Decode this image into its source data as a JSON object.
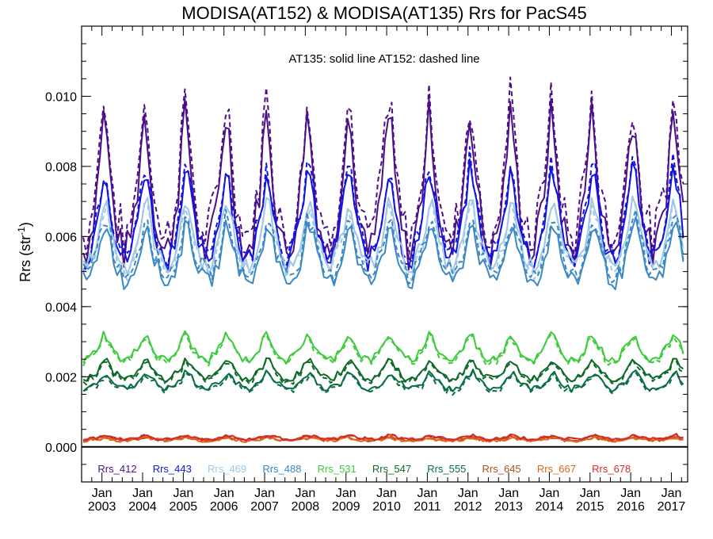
{
  "chart_data": {
    "type": "line",
    "title": "MODISA(AT152) & MODISA(AT135)  Rrs for PacS45",
    "ylabel": "Rrs (str",
    "ylabel_sup": "-1",
    "ylabel_close": ")",
    "annotation": "AT135: solid line   AT152: dashed line",
    "ylim": [
      -0.001,
      0.012
    ],
    "xlim": [
      2002.5,
      2017.4
    ],
    "y_ticks": [
      0.0,
      0.002,
      0.004,
      0.006,
      0.008,
      0.01
    ],
    "y_tick_labels": [
      "0.000",
      "0.002",
      "0.004",
      "0.006",
      "0.008",
      "0.010"
    ],
    "x_ticks": [
      2003,
      2004,
      2005,
      2006,
      2007,
      2008,
      2009,
      2010,
      2011,
      2012,
      2013,
      2014,
      2015,
      2016,
      2017
    ],
    "x_tick_labels_top": [
      "Jan",
      "Jan",
      "Jan",
      "Jan",
      "Jan",
      "Jan",
      "Jan",
      "Jan",
      "Jan",
      "Jan",
      "Jan",
      "Jan",
      "Jan",
      "Jan",
      "Jan"
    ],
    "x_tick_labels_bottom": [
      "2003",
      "2004",
      "2005",
      "2006",
      "2007",
      "2008",
      "2009",
      "2010",
      "2011",
      "2012",
      "2013",
      "2014",
      "2015",
      "2016",
      "2017"
    ],
    "zero_line": true,
    "legend_placement": "bottom inside plot, single row",
    "series_style": {
      "AT135": "solid",
      "AT152": "dashed"
    },
    "series": [
      {
        "name": "Rrs_412",
        "color": "#4b0f87",
        "base": 0.0067,
        "amp": 0.0021,
        "phase": 0.0,
        "noise": 0.00055,
        "dash_offset": 0.0004
      },
      {
        "name": "Rrs_443",
        "color": "#1414dc",
        "base": 0.0061,
        "amp": 0.0014,
        "phase": 0.3,
        "noise": 0.00035,
        "dash_offset": 0.00015
      },
      {
        "name": "Rrs_469",
        "color": "#9fc8e6",
        "base": 0.0057,
        "amp": 0.001,
        "phase": 0.6,
        "noise": 0.00025,
        "dash_offset": -0.0001
      },
      {
        "name": "Rrs_488",
        "color": "#3a88c4",
        "base": 0.0052,
        "amp": 0.0009,
        "phase": 0.9,
        "noise": 0.00025,
        "dash_offset": 0.0002
      },
      {
        "name": "Rrs_531",
        "color": "#3ccc3c",
        "base": 0.0027,
        "amp": 0.0004,
        "phase": 0.2,
        "noise": 0.00012,
        "dash_offset": -5e-05
      },
      {
        "name": "Rrs_547",
        "color": "#0f6a2a",
        "base": 0.0021,
        "amp": 0.0003,
        "phase": 0.5,
        "noise": 0.0001,
        "dash_offset": -5e-05
      },
      {
        "name": "Rrs_555",
        "color": "#0a6e46",
        "base": 0.0018,
        "amp": 0.00025,
        "phase": 0.8,
        "noise": 0.0001,
        "dash_offset": -5e-05
      },
      {
        "name": "Rrs_645",
        "color": "#b0521c",
        "base": 0.00022,
        "amp": 5e-05,
        "phase": 0.1,
        "noise": 4e-05,
        "dash_offset": 0.0
      },
      {
        "name": "Rrs_667",
        "color": "#e0661a",
        "base": 0.0002,
        "amp": 5e-05,
        "phase": 0.4,
        "noise": 4e-05,
        "dash_offset": 0.0
      },
      {
        "name": "Rrs_678",
        "color": "#d82a2a",
        "base": 0.00025,
        "amp": 6e-05,
        "phase": 0.7,
        "noise": 4e-05,
        "dash_offset": 0.0
      }
    ]
  }
}
